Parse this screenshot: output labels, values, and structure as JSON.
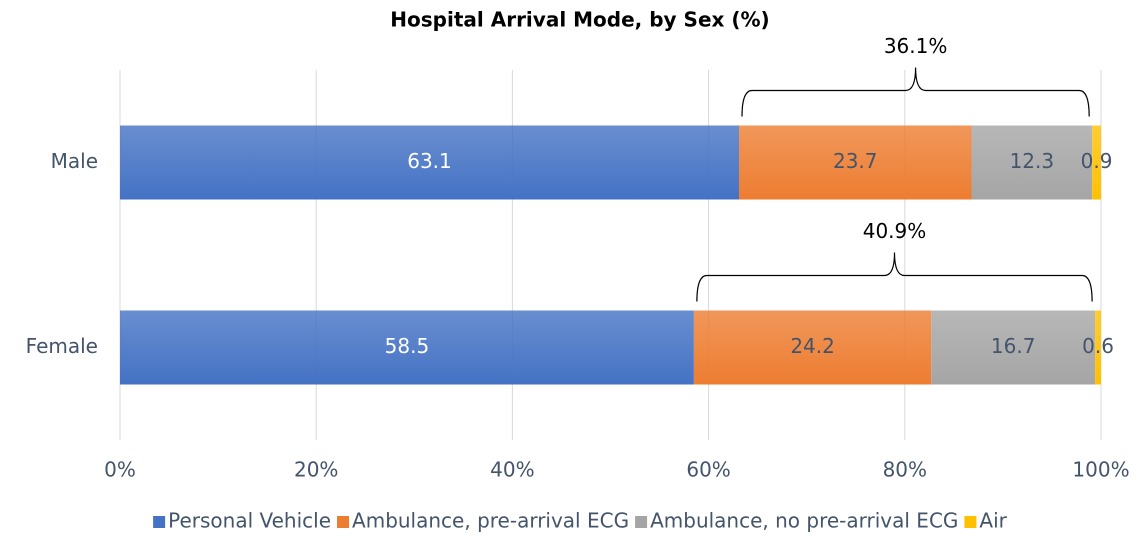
{
  "chart_data": {
    "type": "stacked-barh",
    "title": "Hospital Arrival Mode, by Sex (%)",
    "categories": [
      "Male",
      "Female"
    ],
    "series": [
      {
        "name": "Personal Vehicle",
        "color": "#4472c4",
        "values": [
          63.1,
          58.5
        ]
      },
      {
        "name": "Ambulance, pre-arrival ECG",
        "color": "#ed7d31",
        "values": [
          23.7,
          24.2
        ]
      },
      {
        "name": "Ambulance, no pre-arrival ECG",
        "color": "#a5a5a5",
        "values": [
          12.3,
          16.7
        ]
      },
      {
        "name": "Air",
        "color": "#ffc000",
        "values": [
          0.9,
          0.6
        ]
      }
    ],
    "annotations": [
      "36.1%",
      "40.9%"
    ],
    "xlim": [
      0,
      100
    ],
    "xticks": [
      {
        "value": 0,
        "label": "0%"
      },
      {
        "value": 20,
        "label": "20%"
      },
      {
        "value": 40,
        "label": "40%"
      },
      {
        "value": 60,
        "label": "60%"
      },
      {
        "value": 80,
        "label": "80%"
      },
      {
        "value": 100,
        "label": "100%"
      }
    ],
    "grid": true,
    "legend": "bottom"
  }
}
